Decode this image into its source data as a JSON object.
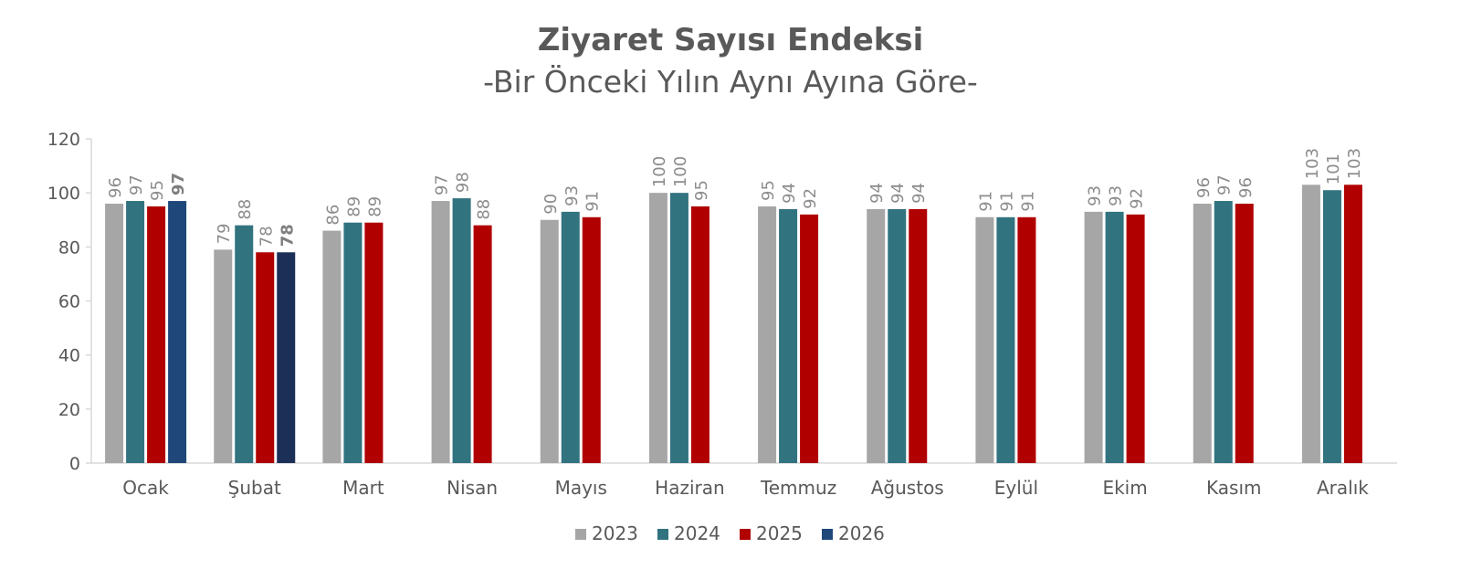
{
  "chart_data": {
    "type": "bar",
    "title": "Ziyaret Sayısı Endeksi",
    "subtitle": "-Bir Önceki Yılın Aynı Ayına Göre-",
    "categories": [
      "Ocak",
      "Şubat",
      "Mart",
      "Nisan",
      "Mayıs",
      "Haziran",
      "Temmuz",
      "Ağustos",
      "Eylül",
      "Ekim",
      "Kasım",
      "Aralık"
    ],
    "series": [
      {
        "name": "2023",
        "color": "#a6a6a6",
        "values": [
          96,
          79,
          86,
          97,
          90,
          100,
          95,
          94,
          91,
          93,
          96,
          103
        ],
        "labels": [
          "96",
          "79",
          "86",
          "97",
          "90",
          "100",
          "95",
          "94",
          "91",
          "93",
          "96",
          "103"
        ]
      },
      {
        "name": "2024",
        "color": "#31737f",
        "values": [
          97,
          88,
          89,
          98,
          93,
          100,
          94,
          94,
          91,
          93,
          97,
          101
        ],
        "labels": [
          "97",
          "88",
          "89",
          "98",
          "93",
          "100",
          "94",
          "94",
          "91",
          "93",
          "97",
          "101"
        ]
      },
      {
        "name": "2025",
        "color": "#b00000",
        "values": [
          95,
          78,
          89,
          88,
          91,
          95,
          92,
          94,
          91,
          92,
          96,
          103
        ],
        "labels": [
          "95",
          "78",
          "89",
          "88",
          "91",
          "95",
          "92",
          "94",
          "91",
          "92",
          "96",
          "103"
        ]
      },
      {
        "name": "2026",
        "color": "#1f477a",
        "alt_color": "#1b2f57",
        "values": [
          97,
          78,
          null,
          null,
          null,
          null,
          null,
          null,
          null,
          null,
          null,
          null
        ],
        "labels": [
          "97",
          "78",
          "",
          "",
          "",
          "",
          "",
          "",
          "",
          "",
          "",
          ""
        ],
        "bold_labels": true
      }
    ],
    "ylim": [
      0,
      120
    ],
    "yticks": [
      "0",
      "20",
      "40",
      "60",
      "80",
      "100",
      "120"
    ],
    "grid": false,
    "legend": "bottom-center",
    "xlabel": "",
    "ylabel": ""
  }
}
